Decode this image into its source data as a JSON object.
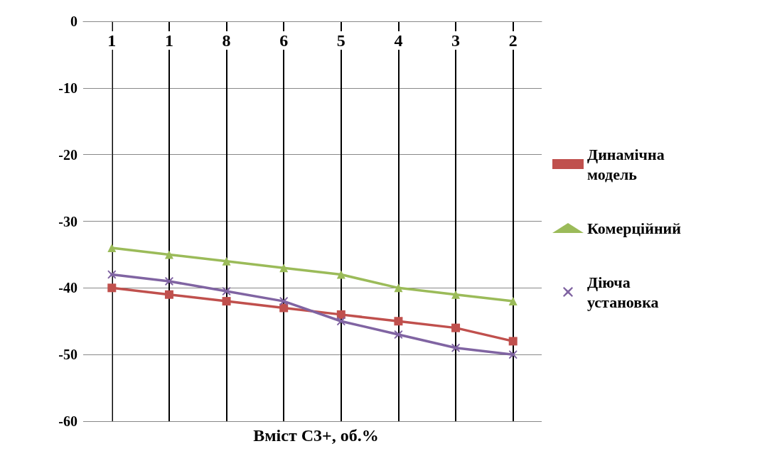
{
  "chart_data": {
    "type": "line",
    "xlabel": "Вміст С3+, об.%",
    "categories": [
      "1",
      "1",
      "8",
      "6",
      "5",
      "4",
      "3",
      "2"
    ],
    "series": [
      {
        "name": "Динамічна модель",
        "color": "#c0504d",
        "marker": "square",
        "values": [
          -40,
          -41,
          -42,
          -43,
          -44,
          -45,
          -46,
          -48
        ]
      },
      {
        "name": "Комерційний",
        "color": "#9bbb59",
        "marker": "triangle",
        "values": [
          -34,
          -35,
          -36,
          -37,
          -38,
          -40,
          -41,
          -42
        ]
      },
      {
        "name": "Діюча установка",
        "color": "#8064a2",
        "marker": "cross",
        "values": [
          -38,
          -39,
          -40.5,
          -42,
          -45,
          -47,
          -49,
          -50
        ]
      }
    ],
    "ylim": [
      -60,
      0
    ],
    "yticks": [
      -60,
      -50,
      -40,
      -30,
      -20,
      -10,
      0
    ],
    "grid": true,
    "legend": "right"
  }
}
